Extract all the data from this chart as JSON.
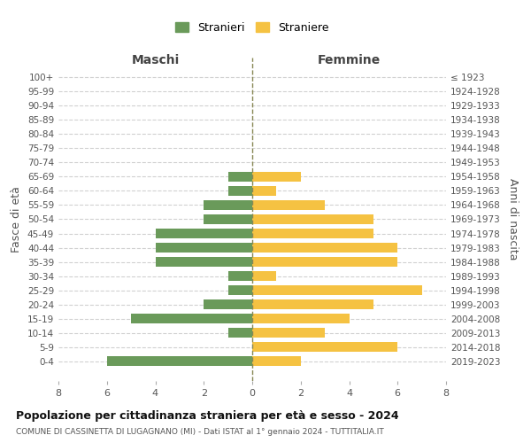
{
  "age_groups": [
    "100+",
    "95-99",
    "90-94",
    "85-89",
    "80-84",
    "75-79",
    "70-74",
    "65-69",
    "60-64",
    "55-59",
    "50-54",
    "45-49",
    "40-44",
    "35-39",
    "30-34",
    "25-29",
    "20-24",
    "15-19",
    "10-14",
    "5-9",
    "0-4"
  ],
  "birth_years": [
    "≤ 1923",
    "1924-1928",
    "1929-1933",
    "1934-1938",
    "1939-1943",
    "1944-1948",
    "1949-1953",
    "1954-1958",
    "1959-1963",
    "1964-1968",
    "1969-1973",
    "1974-1978",
    "1979-1983",
    "1984-1988",
    "1989-1993",
    "1994-1998",
    "1999-2003",
    "2004-2008",
    "2009-2013",
    "2014-2018",
    "2019-2023"
  ],
  "males": [
    0,
    0,
    0,
    0,
    0,
    0,
    0,
    1,
    1,
    2,
    2,
    4,
    4,
    4,
    1,
    1,
    2,
    5,
    1,
    0,
    6
  ],
  "females": [
    0,
    0,
    0,
    0,
    0,
    0,
    0,
    2,
    1,
    3,
    5,
    5,
    6,
    6,
    1,
    7,
    5,
    4,
    3,
    6,
    2
  ],
  "male_color": "#6a9a5a",
  "female_color": "#f5c242",
  "title": "Popolazione per cittadinanza straniera per età e sesso - 2024",
  "subtitle": "COMUNE DI CASSINETTA DI LUGAGNANO (MI) - Dati ISTAT al 1° gennaio 2024 - TUTTITALIA.IT",
  "xlabel_left": "Maschi",
  "xlabel_right": "Femmine",
  "ylabel_left": "Fasce di età",
  "ylabel_right": "Anni di nascita",
  "legend_male": "Stranieri",
  "legend_female": "Straniere",
  "xlim": 8,
  "background_color": "#ffffff",
  "grid_color": "#cccccc"
}
